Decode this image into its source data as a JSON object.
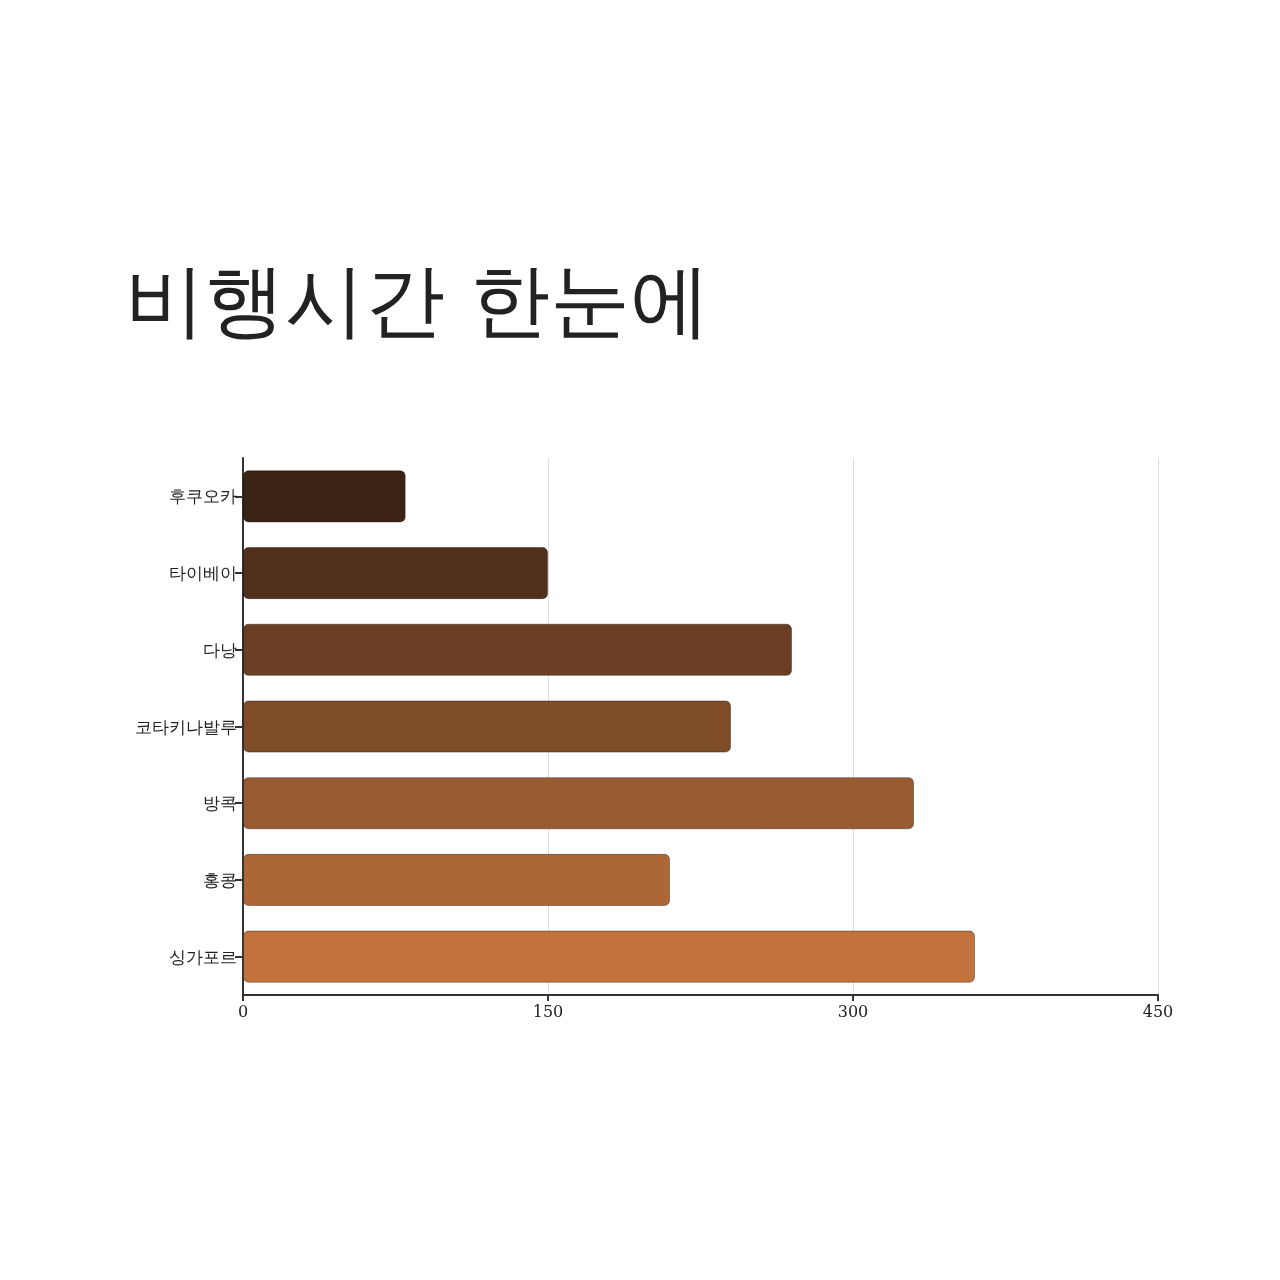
{
  "chart_data": {
    "type": "bar",
    "orientation": "horizontal",
    "title": "비행시간 한눈에",
    "categories": [
      "후쿠오카",
      "타이베이",
      "다낭",
      "코타키나발루",
      "방콕",
      "홍콩",
      "싱가포르"
    ],
    "values": [
      80,
      150,
      270,
      240,
      330,
      210,
      360
    ],
    "colors": [
      "#3c2314",
      "#512f1b",
      "#693e22",
      "#7f4c28",
      "#985a30",
      "#ad6636",
      "#c2733b"
    ],
    "xlim": [
      0,
      450
    ],
    "xticks": [
      0,
      150,
      300,
      450
    ],
    "grid": "x"
  }
}
